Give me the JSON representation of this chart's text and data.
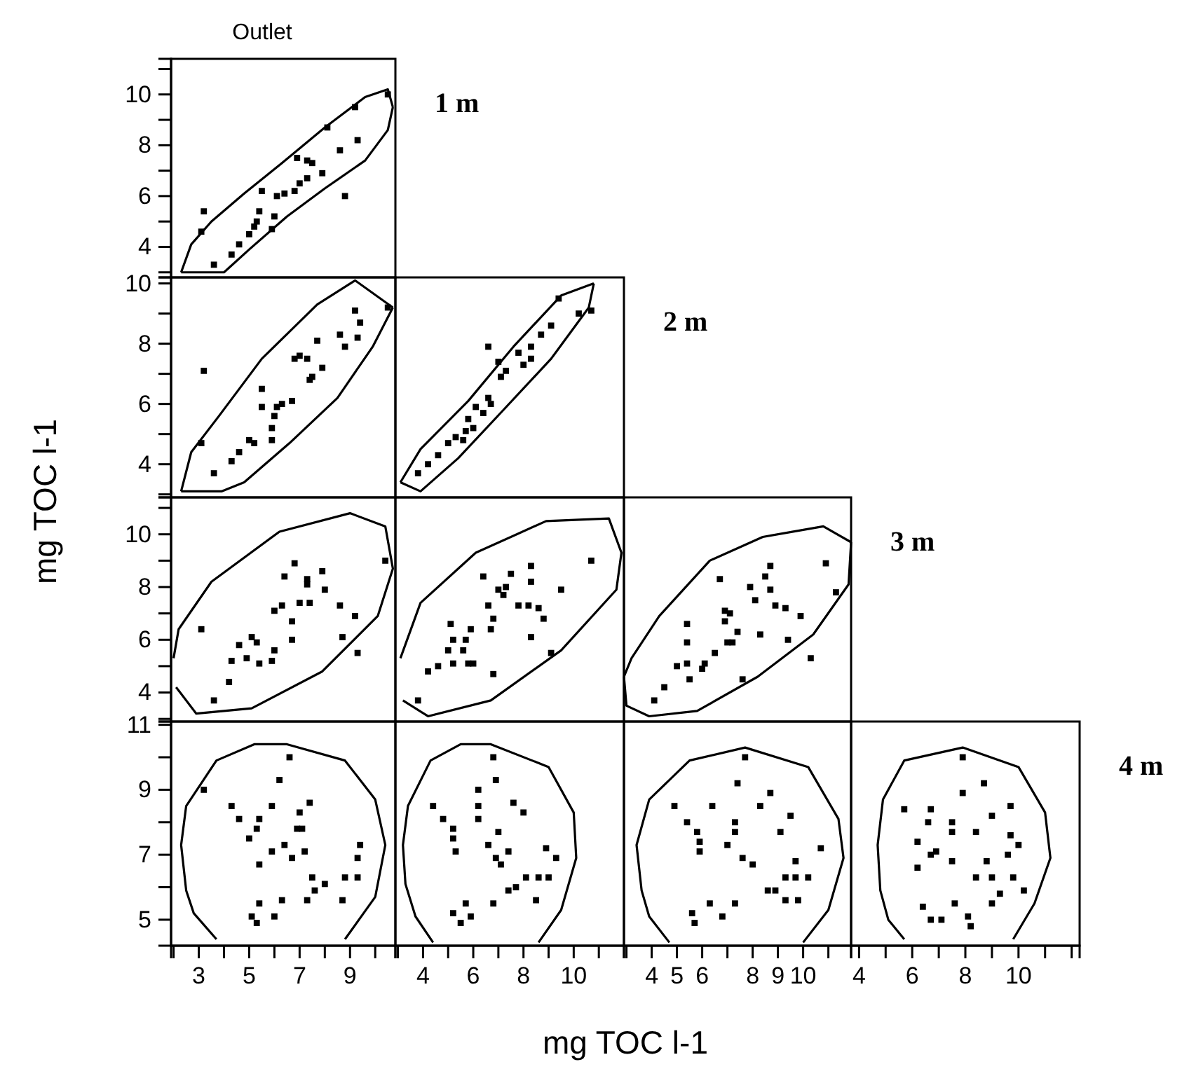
{
  "chart_data": [
    {
      "type": "scatter",
      "title": "Outlet",
      "annotations": [
        "1 m"
      ],
      "xlim": [
        1.9,
        10.8
      ],
      "ylim": [
        2.8,
        11.4
      ],
      "yticks": [
        {
          "value": 3,
          "label": null
        },
        4,
        {
          "value": 5,
          "label": null
        },
        6,
        {
          "value": 7,
          "label": null
        },
        8,
        {
          "value": 9,
          "label": null
        },
        10,
        {
          "value": 11,
          "label": null
        }
      ],
      "tick_labels": "y",
      "marker": "square",
      "series": [
        {
          "type": "scatter",
          "color": "#000000",
          "x": [
            3.2,
            3.1,
            3.6,
            4.3,
            4.6,
            5.0,
            5.2,
            5.3,
            5.4,
            5.5,
            5.9,
            6.0,
            6.1,
            6.4,
            6.8,
            7.0,
            6.9,
            7.3,
            7.3,
            7.5,
            7.9,
            8.1,
            8.6,
            8.8,
            9.2,
            9.3,
            10.5
          ],
          "values": [
            5.4,
            4.6,
            3.3,
            3.7,
            4.1,
            4.5,
            4.8,
            5.0,
            5.4,
            6.2,
            4.7,
            5.2,
            6.0,
            6.1,
            6.2,
            6.5,
            7.5,
            6.7,
            7.4,
            7.3,
            6.9,
            8.7,
            7.8,
            6.0,
            9.5,
            8.2,
            10.0
          ]
        },
        {
          "type": "line",
          "color": "#000000",
          "marker": "none",
          "x": [
            2.3,
            2.7,
            3.5,
            4.8,
            6.3,
            8.0,
            9.6,
            10.5,
            10.7
          ],
          "values": [
            3.0,
            4.1,
            5.0,
            6.1,
            7.3,
            8.7,
            9.9,
            10.2,
            9.5
          ]
        },
        {
          "type": "line",
          "color": "#000000",
          "marker": "none",
          "x": [
            2.3,
            4.0,
            5.0,
            6.5,
            8.0,
            9.6,
            10.5,
            10.7
          ],
          "values": [
            3.0,
            3.0,
            3.9,
            5.2,
            6.3,
            7.4,
            8.6,
            9.5
          ]
        }
      ]
    },
    {
      "type": "scatter",
      "xlim": [
        1.9,
        10.8
      ],
      "ylim": [
        2.9,
        10.2
      ],
      "yticks": [
        {
          "value": 3,
          "label": null
        },
        4,
        {
          "value": 5,
          "label": null
        },
        6,
        {
          "value": 7,
          "label": null
        },
        8,
        {
          "value": 9,
          "label": null
        },
        10
      ],
      "tick_labels": "y",
      "marker": "square",
      "series": [
        {
          "type": "scatter",
          "color": "#000000",
          "x": [
            3.2,
            3.1,
            3.6,
            4.3,
            4.6,
            5.0,
            5.2,
            5.5,
            5.5,
            5.9,
            5.9,
            6.0,
            6.1,
            6.3,
            6.7,
            6.8,
            7.0,
            7.3,
            7.4,
            7.5,
            7.9,
            7.7,
            8.6,
            8.8,
            9.2,
            9.3,
            9.4,
            10.5
          ],
          "values": [
            7.1,
            4.7,
            3.7,
            4.1,
            4.4,
            4.8,
            4.7,
            6.5,
            5.9,
            5.2,
            4.8,
            5.6,
            5.9,
            6.0,
            6.1,
            7.5,
            7.6,
            7.5,
            6.8,
            6.9,
            7.2,
            8.1,
            8.3,
            7.9,
            9.1,
            8.2,
            8.7,
            9.2
          ]
        },
        {
          "type": "line",
          "color": "#000000",
          "marker": "none",
          "x": [
            2.3,
            2.7,
            3.8,
            5.5,
            7.7,
            9.2,
            10.7
          ],
          "values": [
            3.1,
            4.4,
            5.6,
            7.5,
            9.3,
            10.1,
            9.2
          ]
        },
        {
          "type": "line",
          "color": "#000000",
          "marker": "none",
          "x": [
            2.3,
            3.9,
            4.8,
            6.6,
            8.5,
            9.9,
            10.7
          ],
          "values": [
            3.1,
            3.1,
            3.4,
            4.7,
            6.2,
            7.9,
            9.2
          ]
        }
      ]
    },
    {
      "type": "scatter",
      "annotations": [
        "2 m"
      ],
      "xlim": [
        2.9,
        12
      ],
      "ylim": [
        2.9,
        10.2
      ],
      "tick_labels": false,
      "marker": "square",
      "series": [
        {
          "type": "scatter",
          "color": "#000000",
          "x": [
            3.8,
            4.2,
            4.6,
            5.0,
            5.3,
            5.6,
            5.7,
            5.8,
            6.0,
            6.1,
            6.4,
            6.6,
            6.7,
            6.6,
            7.0,
            7.1,
            7.3,
            7.8,
            8.0,
            8.3,
            8.3,
            8.7,
            9.1,
            9.4,
            10.2,
            10.7
          ],
          "values": [
            3.7,
            4.0,
            4.3,
            4.7,
            4.9,
            4.8,
            5.1,
            5.5,
            5.2,
            5.9,
            5.7,
            6.2,
            6.0,
            7.9,
            7.4,
            6.9,
            7.1,
            7.7,
            7.3,
            7.5,
            7.9,
            8.3,
            8.6,
            9.5,
            9.0,
            9.1
          ]
        },
        {
          "type": "line",
          "color": "#000000",
          "marker": "none",
          "x": [
            3.1,
            3.9,
            5.8,
            7.6,
            9.5,
            10.8
          ],
          "values": [
            3.4,
            4.5,
            6.1,
            7.9,
            9.6,
            10.0
          ]
        },
        {
          "type": "line",
          "color": "#000000",
          "marker": "none",
          "x": [
            3.1,
            3.9,
            5.4,
            7.2,
            9.1,
            10.6,
            10.8
          ],
          "values": [
            3.4,
            3.1,
            4.2,
            5.8,
            7.5,
            9.2,
            10.0
          ]
        }
      ]
    },
    {
      "type": "scatter",
      "xlim": [
        1.9,
        10.8
      ],
      "ylim": [
        2.9,
        11.4
      ],
      "yticks": [
        {
          "value": 3,
          "label": null
        },
        4,
        {
          "value": 5,
          "label": null
        },
        6,
        {
          "value": 7,
          "label": null
        },
        8,
        {
          "value": 9,
          "label": null
        },
        10,
        {
          "value": 11,
          "label": null
        }
      ],
      "tick_labels": "y",
      "marker": "square",
      "series": [
        {
          "type": "scatter",
          "color": "#000000",
          "x": [
            3.6,
            4.2,
            3.1,
            4.3,
            4.6,
            4.9,
            5.1,
            5.3,
            5.4,
            5.9,
            6.0,
            6.0,
            6.3,
            6.4,
            6.7,
            6.7,
            6.8,
            7.0,
            7.3,
            7.3,
            7.4,
            7.9,
            8.0,
            8.6,
            8.7,
            9.2,
            9.3,
            10.4
          ],
          "values": [
            3.7,
            4.4,
            6.4,
            5.2,
            5.8,
            5.3,
            6.1,
            5.9,
            5.1,
            5.2,
            5.6,
            7.1,
            7.3,
            8.4,
            6.7,
            6.0,
            8.9,
            7.4,
            8.3,
            8.1,
            7.4,
            8.6,
            7.9,
            7.3,
            6.1,
            6.9,
            5.5,
            9.0
          ]
        },
        {
          "type": "line",
          "color": "#000000",
          "marker": "none",
          "x": [
            2.0,
            2.2,
            3.5,
            6.2,
            9.0,
            10.4,
            10.7,
            10.1,
            7.9,
            5.1,
            2.9,
            2.1
          ],
          "values": [
            5.3,
            6.4,
            8.2,
            10.1,
            10.8,
            10.3,
            8.7,
            6.9,
            4.8,
            3.4,
            3.2,
            4.2
          ]
        }
      ]
    },
    {
      "type": "scatter",
      "xlim": [
        2.9,
        12
      ],
      "ylim": [
        2.9,
        11.4
      ],
      "tick_labels": false,
      "marker": "square",
      "series": [
        {
          "type": "scatter",
          "color": "#000000",
          "x": [
            3.8,
            4.2,
            4.6,
            5.0,
            5.1,
            5.2,
            5.2,
            5.6,
            5.7,
            5.8,
            5.9,
            6.0,
            6.4,
            6.6,
            6.7,
            6.8,
            6.8,
            7.0,
            7.2,
            7.3,
            7.5,
            7.8,
            8.2,
            8.3,
            8.3,
            8.3,
            8.6,
            8.8,
            9.1,
            9.5,
            10.7
          ],
          "values": [
            3.7,
            4.8,
            5.0,
            5.6,
            6.6,
            5.1,
            6.0,
            5.6,
            6.0,
            5.1,
            6.4,
            5.1,
            8.4,
            7.3,
            6.4,
            6.8,
            4.7,
            7.9,
            7.7,
            8.0,
            8.5,
            7.3,
            7.3,
            8.8,
            8.2,
            6.1,
            7.2,
            6.8,
            5.5,
            7.9,
            9.0
          ]
        },
        {
          "type": "line",
          "color": "#000000",
          "marker": "none",
          "x": [
            3.1,
            3.9,
            6.1,
            8.9,
            11.4,
            11.9,
            11.7,
            9.5,
            6.7,
            4.2,
            3.2
          ],
          "values": [
            5.3,
            7.4,
            9.3,
            10.5,
            10.6,
            9.3,
            7.9,
            5.6,
            3.7,
            3.1,
            3.7
          ]
        }
      ]
    },
    {
      "type": "scatter",
      "annotations": [
        "3 m"
      ],
      "xlim": [
        2.9,
        11.9
      ],
      "ylim": [
        2.9,
        11.4
      ],
      "tick_labels": false,
      "marker": "square",
      "series": [
        {
          "type": "scatter",
          "color": "#000000",
          "x": [
            4.1,
            4.5,
            5.0,
            5.4,
            5.5,
            6.0,
            6.1,
            5.4,
            5.4,
            6.5,
            6.9,
            7.1,
            6.9,
            7.4,
            7.0,
            7.2,
            7.6,
            6.7,
            7.9,
            8.1,
            8.3,
            8.5,
            8.7,
            8.7,
            8.9,
            9.3,
            9.4,
            9.9,
            10.3,
            10.9,
            11.3
          ],
          "values": [
            3.7,
            4.2,
            5.0,
            5.1,
            4.5,
            4.9,
            5.1,
            6.6,
            5.9,
            5.5,
            7.1,
            7.0,
            6.7,
            6.3,
            5.9,
            5.9,
            4.5,
            8.3,
            8.0,
            7.5,
            6.2,
            8.4,
            7.9,
            8.8,
            7.3,
            7.2,
            6.0,
            6.9,
            5.3,
            8.9,
            7.8
          ]
        },
        {
          "type": "line",
          "color": "#000000",
          "marker": "none",
          "x": [
            2.9,
            3.2,
            4.3,
            6.3,
            8.4,
            10.8,
            11.9
          ],
          "values": [
            4.6,
            5.3,
            6.9,
            9.0,
            9.9,
            10.3,
            9.7
          ]
        },
        {
          "type": "line",
          "color": "#000000",
          "marker": "none",
          "x": [
            2.9,
            3.0,
            3.9,
            5.8,
            8.2,
            10.4,
            11.8,
            11.9
          ],
          "values": [
            4.6,
            3.5,
            3.1,
            3.3,
            4.6,
            6.2,
            8.1,
            9.7
          ]
        }
      ]
    },
    {
      "type": "scatter",
      "xlabel": "mg TOC l-1",
      "ylabel": "mg TOC l-1",
      "xlim": [
        1.9,
        10.8
      ],
      "ylim": [
        4.2,
        11.1
      ],
      "xticks": [
        {
          "value": 2,
          "label": null
        },
        3,
        {
          "value": 4,
          "label": null
        },
        5,
        {
          "value": 6,
          "label": null
        },
        7,
        {
          "value": 8,
          "label": null
        },
        9,
        {
          "value": 10,
          "label": null
        }
      ],
      "yticks": [
        5,
        {
          "value": 6,
          "label": null
        },
        7,
        {
          "value": 8,
          "label": null
        },
        9,
        {
          "value": 10,
          "label": null
        },
        11
      ],
      "marker": "square",
      "series": [
        {
          "type": "scatter",
          "color": "#000000",
          "x": [
            3.2,
            4.3,
            4.6,
            5.0,
            5.3,
            5.4,
            5.4,
            5.9,
            5.9,
            6.2,
            6.4,
            6.7,
            6.9,
            7.1,
            7.0,
            7.2,
            7.4,
            7.5,
            7.6,
            8.0,
            7.3,
            5.4,
            6.3,
            6.0,
            5.1,
            5.3,
            8.7,
            8.8,
            9.3,
            9.3,
            9.4,
            6.6
          ],
          "values": [
            9.0,
            8.5,
            8.1,
            7.5,
            7.8,
            8.1,
            6.7,
            8.5,
            7.1,
            9.3,
            7.3,
            6.9,
            7.8,
            7.8,
            8.3,
            7.1,
            8.6,
            6.3,
            5.9,
            6.1,
            5.6,
            5.5,
            5.6,
            5.1,
            5.1,
            4.9,
            5.6,
            6.3,
            6.3,
            6.9,
            7.3,
            10.0
          ]
        },
        {
          "type": "line",
          "color": "#000000",
          "marker": "none",
          "x": [
            3.7,
            2.8,
            2.5,
            2.3,
            2.5,
            3.7,
            5.2,
            6.5,
            8.8,
            10.0,
            10.4,
            10.0,
            8.8
          ],
          "values": [
            4.4,
            5.2,
            5.9,
            7.3,
            8.5,
            9.9,
            10.4,
            10.4,
            9.9,
            8.7,
            7.3,
            5.7,
            4.4
          ]
        }
      ]
    },
    {
      "type": "scatter",
      "xlim": [
        2.9,
        12
      ],
      "ylim": [
        4.2,
        11.1
      ],
      "xticks": [
        {
          "value": 3,
          "label": null
        },
        4,
        {
          "value": 5,
          "label": null
        },
        6,
        {
          "value": 7,
          "label": null
        },
        8,
        {
          "value": 9,
          "label": null
        },
        10,
        {
          "value": 11,
          "label": null
        }
      ],
      "tick_labels": "x",
      "marker": "square",
      "series": [
        {
          "type": "scatter",
          "color": "#000000",
          "x": [
            4.4,
            4.8,
            5.2,
            5.2,
            5.3,
            6.2,
            6.2,
            6.2,
            6.6,
            6.9,
            7.0,
            6.9,
            7.1,
            7.4,
            7.6,
            8.0,
            8.1,
            7.4,
            7.7,
            8.9,
            9.3,
            8.6,
            9.0,
            8.5,
            6.8,
            5.7,
            5.2,
            5.9,
            5.5,
            6.8
          ],
          "values": [
            8.5,
            8.1,
            7.8,
            7.5,
            7.1,
            9.0,
            8.5,
            8.1,
            7.3,
            9.3,
            7.7,
            6.9,
            6.7,
            7.1,
            8.6,
            8.3,
            6.3,
            5.9,
            6.0,
            7.2,
            6.9,
            6.3,
            6.3,
            5.6,
            5.5,
            5.5,
            5.2,
            5.1,
            4.9,
            10.0
          ]
        },
        {
          "type": "line",
          "color": "#000000",
          "marker": "none",
          "x": [
            4.4,
            3.7,
            3.3,
            3.2,
            3.4,
            4.3,
            5.5,
            6.7,
            9.0,
            10.0,
            10.1,
            9.5,
            8.6
          ],
          "values": [
            4.3,
            5.1,
            6.1,
            7.3,
            8.5,
            9.9,
            10.4,
            10.4,
            9.7,
            8.3,
            6.9,
            5.3,
            4.3
          ]
        }
      ]
    },
    {
      "type": "scatter",
      "xlim": [
        2.9,
        11.9
      ],
      "ylim": [
        4.2,
        11.1
      ],
      "xticks": [
        {
          "value": 3,
          "label": null
        },
        4,
        5,
        6,
        {
          "value": 7,
          "label": null
        },
        8,
        9,
        10,
        {
          "value": 11,
          "label": null
        }
      ],
      "tick_labels": "x",
      "marker": "square",
      "series": [
        {
          "type": "scatter",
          "color": "#000000",
          "x": [
            4.9,
            5.4,
            5.8,
            5.9,
            5.9,
            6.4,
            7.0,
            7.3,
            7.3,
            7.4,
            7.7,
            8.0,
            7.6,
            8.3,
            8.7,
            9.1,
            9.5,
            9.7,
            9.3,
            9.7,
            10.2,
            10.7,
            8.9,
            8.6,
            9.3,
            9.8,
            7.3,
            6.3,
            5.6,
            5.7,
            6.8
          ],
          "values": [
            8.5,
            8.0,
            7.7,
            7.4,
            7.1,
            8.5,
            7.3,
            8.0,
            7.7,
            9.2,
            10.0,
            6.7,
            6.9,
            8.5,
            8.9,
            7.7,
            8.2,
            6.8,
            6.3,
            6.3,
            6.3,
            7.2,
            5.9,
            5.9,
            5.6,
            5.6,
            5.5,
            5.5,
            5.2,
            4.9,
            5.1
          ]
        },
        {
          "type": "line",
          "color": "#000000",
          "marker": "none",
          "x": [
            4.7,
            3.9,
            3.6,
            3.4,
            3.9,
            5.5,
            7.7,
            10.2,
            11.4,
            11.6,
            11.0,
            10.0
          ],
          "values": [
            4.3,
            5.1,
            5.9,
            7.3,
            8.7,
            9.9,
            10.3,
            9.7,
            8.1,
            6.9,
            5.3,
            4.3
          ]
        }
      ]
    },
    {
      "type": "scatter",
      "annotations": [
        "4 m"
      ],
      "xlim": [
        3.7,
        12.3
      ],
      "ylim": [
        4.2,
        11.1
      ],
      "xticks": [
        4,
        {
          "value": 5,
          "label": null
        },
        6,
        {
          "value": 7,
          "label": null
        },
        8,
        {
          "value": 9,
          "label": null
        },
        10,
        {
          "value": 11,
          "label": null
        },
        {
          "value": 12,
          "label": null
        }
      ],
      "tick_labels": "x",
      "marker": "square",
      "series": [
        {
          "type": "scatter",
          "color": "#000000",
          "x": [
            5.7,
            6.7,
            6.6,
            6.2,
            6.2,
            6.7,
            6.9,
            7.5,
            7.5,
            7.9,
            7.9,
            8.4,
            8.7,
            9.0,
            9.7,
            9.7,
            10.0,
            9.6,
            8.8,
            7.5,
            8.4,
            9.0,
            9.8,
            10.2,
            9.3,
            9.0,
            7.6,
            6.4,
            6.7,
            7.1,
            8.1,
            8.2
          ],
          "values": [
            8.4,
            8.4,
            8.0,
            7.4,
            6.6,
            7.0,
            7.1,
            8.0,
            7.7,
            8.9,
            10.0,
            7.7,
            9.2,
            8.2,
            8.5,
            7.6,
            7.3,
            7.0,
            6.8,
            6.8,
            6.3,
            6.3,
            6.3,
            5.9,
            5.8,
            5.5,
            5.5,
            5.4,
            5.0,
            5.0,
            5.1,
            4.8
          ]
        },
        {
          "type": "line",
          "color": "#000000",
          "marker": "none",
          "x": [
            5.7,
            5.1,
            4.8,
            4.7,
            4.9,
            5.7,
            7.9,
            10.0,
            11.0,
            11.2,
            10.6,
            9.8
          ],
          "values": [
            4.4,
            5.0,
            5.9,
            7.3,
            8.7,
            9.9,
            10.3,
            9.7,
            8.3,
            6.9,
            5.5,
            4.4
          ]
        }
      ]
    }
  ]
}
